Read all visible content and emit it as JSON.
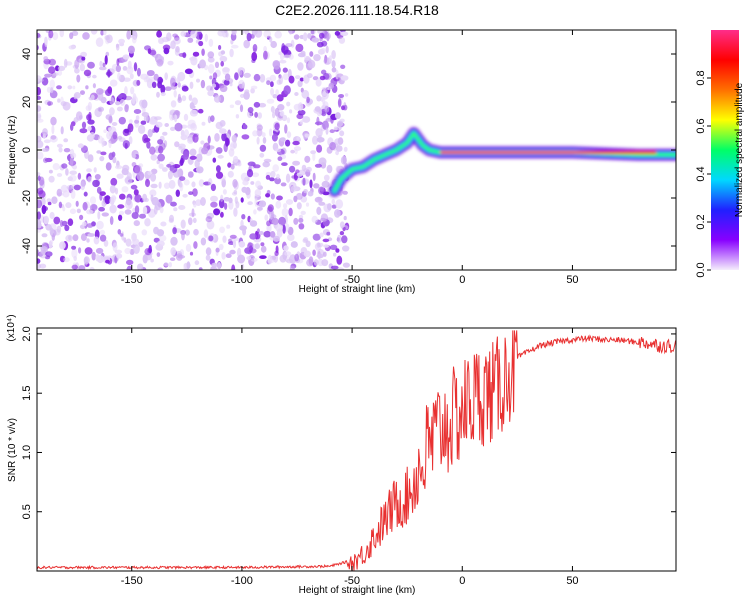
{
  "title": "C2E2.2026.111.18.54.R18",
  "chart_data": [
    {
      "type": "heatmap",
      "xlabel": "Height of straight line (km)",
      "ylabel": "Frequency (Hz)",
      "xlim": [
        -193,
        97
      ],
      "ylim": [
        -50,
        50
      ],
      "x_ticks": [
        "-150",
        "-100",
        "-50",
        "0",
        "50"
      ],
      "y_ticks": [
        "-40",
        "-20",
        "0",
        "20",
        "40"
      ],
      "noise_region_x": [
        -193,
        -55
      ],
      "signal_track": [
        {
          "x": -58,
          "y": -17
        },
        {
          "x": -55,
          "y": -12
        },
        {
          "x": -50,
          "y": -8
        },
        {
          "x": -45,
          "y": -7
        },
        {
          "x": -40,
          "y": -4
        },
        {
          "x": -35,
          "y": -2
        },
        {
          "x": -30,
          "y": 0
        },
        {
          "x": -25,
          "y": 3
        },
        {
          "x": -22,
          "y": 7
        },
        {
          "x": -18,
          "y": 2
        },
        {
          "x": -15,
          "y": 0
        },
        {
          "x": -10,
          "y": -1
        },
        {
          "x": 0,
          "y": -1
        },
        {
          "x": 20,
          "y": -1
        },
        {
          "x": 50,
          "y": -1
        },
        {
          "x": 80,
          "y": -2
        },
        {
          "x": 97,
          "y": -2
        }
      ],
      "colorbar": {
        "label": "Normalized spectral amplitude",
        "range": [
          0,
          1
        ],
        "ticks": [
          "0.0",
          "0.2",
          "0.4",
          "0.6",
          "0.8"
        ],
        "colors": [
          "#f5eefc",
          "#8800ff",
          "#2020ff",
          "#00d8ff",
          "#00ff66",
          "#ffff00",
          "#ff7000",
          "#ff0000",
          "#ff2d8a"
        ]
      }
    },
    {
      "type": "line",
      "xlabel": "Height of straight line (km)",
      "ylabel": "SNR (10 * v/v)",
      "y_multiplier": "(x10⁴)",
      "xlim": [
        -193,
        97
      ],
      "ylim": [
        0,
        2.05
      ],
      "x_ticks": [
        "-150",
        "-100",
        "-50",
        "0",
        "50"
      ],
      "y_ticks": [
        "0.5",
        "1.0",
        "1.5",
        "2.0"
      ],
      "color": "#e83030",
      "series": [
        {
          "x": [
            -193,
            -150,
            -100,
            -60,
            -50,
            -45,
            -40,
            -35,
            -30,
            -25,
            -20,
            -15,
            -10,
            -5,
            0,
            5,
            10,
            15,
            20,
            25,
            30,
            35,
            40,
            45,
            50,
            55,
            60,
            65,
            70,
            75,
            80,
            85,
            90,
            97
          ],
          "values": [
            0.02,
            0.02,
            0.02,
            0.03,
            0.08,
            0.15,
            0.3,
            0.45,
            0.6,
            0.65,
            0.85,
            1.1,
            1.25,
            1.3,
            1.4,
            1.5,
            1.55,
            1.55,
            1.7,
            1.8,
            1.85,
            1.9,
            1.92,
            1.94,
            1.95,
            1.96,
            1.96,
            1.95,
            1.95,
            1.94,
            1.93,
            1.92,
            1.9,
            1.9
          ]
        }
      ]
    }
  ]
}
